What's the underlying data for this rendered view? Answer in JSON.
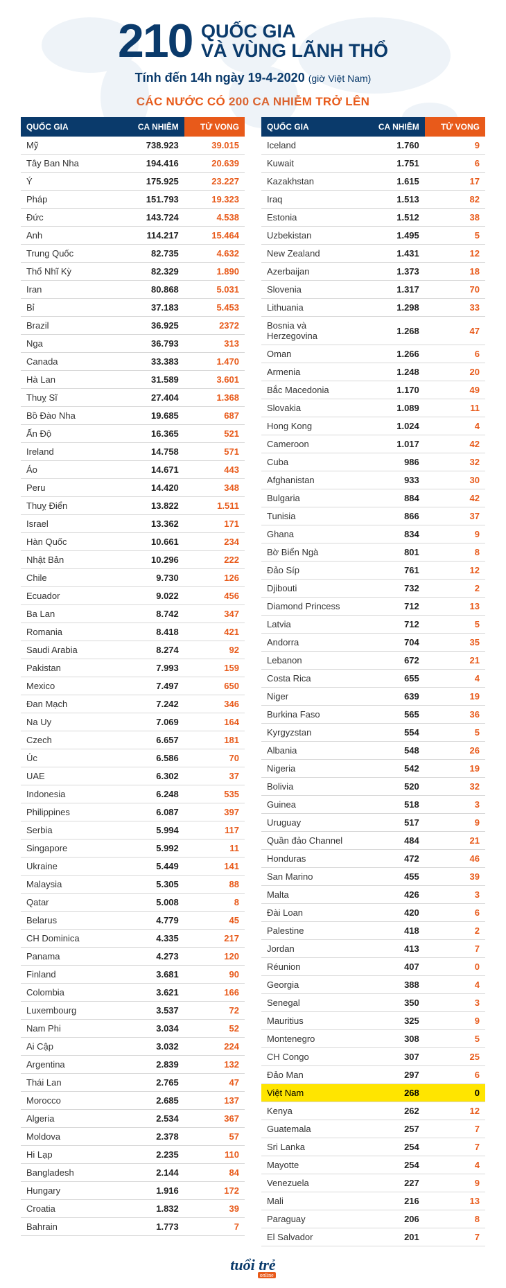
{
  "header": {
    "big_number": "210",
    "title_line1": "QUỐC GIA",
    "title_line2": "VÀ VÙNG LÃNH THỔ",
    "subtitle_main": "Tính đến 14h ngày 19-4-2020",
    "subtitle_note": "(giờ Việt Nam)"
  },
  "section_title": "CÁC NƯỚC CÓ 200 CA NHIỄM TRỞ LÊN",
  "columns": {
    "country": "QUỐC GIA",
    "cases": "CA NHIỄM",
    "deaths": "TỬ VONG"
  },
  "colors": {
    "navy": "#0a3a6b",
    "orange": "#e85a1a",
    "highlight": "#ffe500",
    "border": "#d8d8d8",
    "text": "#333333",
    "background": "#ffffff"
  },
  "logo": {
    "text": "tuổi trẻ",
    "tag": "online"
  },
  "left": [
    {
      "n": "Mỹ",
      "c": "738.923",
      "d": "39.015"
    },
    {
      "n": "Tây Ban Nha",
      "c": "194.416",
      "d": "20.639"
    },
    {
      "n": "Ý",
      "c": "175.925",
      "d": "23.227"
    },
    {
      "n": "Pháp",
      "c": "151.793",
      "d": "19.323"
    },
    {
      "n": "Đức",
      "c": "143.724",
      "d": "4.538"
    },
    {
      "n": "Anh",
      "c": "114.217",
      "d": "15.464"
    },
    {
      "n": "Trung Quốc",
      "c": "82.735",
      "d": "4.632"
    },
    {
      "n": "Thổ Nhĩ Kỳ",
      "c": "82.329",
      "d": "1.890"
    },
    {
      "n": "Iran",
      "c": "80.868",
      "d": "5.031"
    },
    {
      "n": "Bỉ",
      "c": "37.183",
      "d": "5.453"
    },
    {
      "n": "Brazil",
      "c": "36.925",
      "d": "2372"
    },
    {
      "n": "Nga",
      "c": "36.793",
      "d": "313"
    },
    {
      "n": "Canada",
      "c": "33.383",
      "d": "1.470"
    },
    {
      "n": "Hà Lan",
      "c": "31.589",
      "d": "3.601"
    },
    {
      "n": "Thuỵ Sĩ",
      "c": "27.404",
      "d": "1.368"
    },
    {
      "n": "Bồ Đào Nha",
      "c": "19.685",
      "d": "687"
    },
    {
      "n": "Ấn Độ",
      "c": "16.365",
      "d": "521"
    },
    {
      "n": "Ireland",
      "c": "14.758",
      "d": "571"
    },
    {
      "n": "Áo",
      "c": "14.671",
      "d": "443"
    },
    {
      "n": "Peru",
      "c": "14.420",
      "d": "348"
    },
    {
      "n": "Thuỵ Điển",
      "c": "13.822",
      "d": "1.511"
    },
    {
      "n": "Israel",
      "c": "13.362",
      "d": "171"
    },
    {
      "n": "Hàn Quốc",
      "c": "10.661",
      "d": "234"
    },
    {
      "n": "Nhật Bản",
      "c": "10.296",
      "d": "222"
    },
    {
      "n": "Chile",
      "c": "9.730",
      "d": "126"
    },
    {
      "n": "Ecuador",
      "c": "9.022",
      "d": "456"
    },
    {
      "n": "Ba Lan",
      "c": "8.742",
      "d": "347"
    },
    {
      "n": "Romania",
      "c": "8.418",
      "d": "421"
    },
    {
      "n": "Saudi Arabia",
      "c": "8.274",
      "d": "92"
    },
    {
      "n": "Pakistan",
      "c": "7.993",
      "d": "159"
    },
    {
      "n": "Mexico",
      "c": "7.497",
      "d": "650"
    },
    {
      "n": "Đan Mạch",
      "c": "7.242",
      "d": "346"
    },
    {
      "n": "Na Uy",
      "c": "7.069",
      "d": "164"
    },
    {
      "n": "Czech",
      "c": "6.657",
      "d": "181"
    },
    {
      "n": "Úc",
      "c": "6.586",
      "d": "70"
    },
    {
      "n": "UAE",
      "c": "6.302",
      "d": "37"
    },
    {
      "n": "Indonesia",
      "c": "6.248",
      "d": "535"
    },
    {
      "n": "Philippines",
      "c": "6.087",
      "d": "397"
    },
    {
      "n": "Serbia",
      "c": "5.994",
      "d": "117"
    },
    {
      "n": "Singapore",
      "c": "5.992",
      "d": "11"
    },
    {
      "n": "Ukraine",
      "c": "5.449",
      "d": "141"
    },
    {
      "n": "Malaysia",
      "c": "5.305",
      "d": "88"
    },
    {
      "n": "Qatar",
      "c": "5.008",
      "d": "8"
    },
    {
      "n": "Belarus",
      "c": "4.779",
      "d": "45"
    },
    {
      "n": "CH Dominica",
      "c": "4.335",
      "d": "217"
    },
    {
      "n": "Panama",
      "c": "4.273",
      "d": "120"
    },
    {
      "n": "Finland",
      "c": "3.681",
      "d": "90"
    },
    {
      "n": "Colombia",
      "c": "3.621",
      "d": "166"
    },
    {
      "n": "Luxembourg",
      "c": "3.537",
      "d": "72"
    },
    {
      "n": "Nam Phi",
      "c": "3.034",
      "d": "52"
    },
    {
      "n": "Ai Cập",
      "c": "3.032",
      "d": "224"
    },
    {
      "n": "Argentina",
      "c": "2.839",
      "d": "132"
    },
    {
      "n": "Thái Lan",
      "c": "2.765",
      "d": "47"
    },
    {
      "n": "Morocco",
      "c": "2.685",
      "d": "137"
    },
    {
      "n": "Algeria",
      "c": "2.534",
      "d": "367"
    },
    {
      "n": "Moldova",
      "c": "2.378",
      "d": "57"
    },
    {
      "n": "Hi Lạp",
      "c": "2.235",
      "d": "110"
    },
    {
      "n": "Bangladesh",
      "c": "2.144",
      "d": "84"
    },
    {
      "n": "Hungary",
      "c": "1.916",
      "d": "172"
    },
    {
      "n": "Croatia",
      "c": "1.832",
      "d": "39"
    },
    {
      "n": "Bahrain",
      "c": "1.773",
      "d": "7"
    }
  ],
  "right": [
    {
      "n": "Iceland",
      "c": "1.760",
      "d": "9"
    },
    {
      "n": "Kuwait",
      "c": "1.751",
      "d": "6"
    },
    {
      "n": "Kazakhstan",
      "c": "1.615",
      "d": "17"
    },
    {
      "n": "Iraq",
      "c": "1.513",
      "d": "82"
    },
    {
      "n": "Estonia",
      "c": "1.512",
      "d": "38"
    },
    {
      "n": "Uzbekistan",
      "c": "1.495",
      "d": "5"
    },
    {
      "n": "New Zealand",
      "c": "1.431",
      "d": "12"
    },
    {
      "n": "Azerbaijan",
      "c": "1.373",
      "d": "18"
    },
    {
      "n": "Slovenia",
      "c": "1.317",
      "d": "70"
    },
    {
      "n": "Lithuania",
      "c": "1.298",
      "d": "33"
    },
    {
      "n": "Bosnia và Herzegovina",
      "c": "1.268",
      "d": "47"
    },
    {
      "n": "Oman",
      "c": "1.266",
      "d": "6"
    },
    {
      "n": "Armenia",
      "c": "1.248",
      "d": "20"
    },
    {
      "n": "Bắc Macedonia",
      "c": "1.170",
      "d": "49"
    },
    {
      "n": "Slovakia",
      "c": "1.089",
      "d": "11"
    },
    {
      "n": "Hong Kong",
      "c": "1.024",
      "d": "4"
    },
    {
      "n": "Cameroon",
      "c": "1.017",
      "d": "42"
    },
    {
      "n": "Cuba",
      "c": "986",
      "d": "32"
    },
    {
      "n": "Afghanistan",
      "c": "933",
      "d": "30"
    },
    {
      "n": "Bulgaria",
      "c": "884",
      "d": "42"
    },
    {
      "n": "Tunisia",
      "c": "866",
      "d": "37"
    },
    {
      "n": "Ghana",
      "c": "834",
      "d": "9"
    },
    {
      "n": "Bờ Biển Ngà",
      "c": "801",
      "d": "8"
    },
    {
      "n": "Đảo Síp",
      "c": "761",
      "d": "12"
    },
    {
      "n": "Djibouti",
      "c": "732",
      "d": "2"
    },
    {
      "n": "Diamond Princess",
      "c": "712",
      "d": "13"
    },
    {
      "n": "Latvia",
      "c": "712",
      "d": "5"
    },
    {
      "n": "Andorra",
      "c": "704",
      "d": "35"
    },
    {
      "n": "Lebanon",
      "c": "672",
      "d": "21"
    },
    {
      "n": "Costa Rica",
      "c": "655",
      "d": "4"
    },
    {
      "n": "Niger",
      "c": "639",
      "d": "19"
    },
    {
      "n": "Burkina Faso",
      "c": "565",
      "d": "36"
    },
    {
      "n": "Kyrgyzstan",
      "c": "554",
      "d": "5"
    },
    {
      "n": "Albania",
      "c": "548",
      "d": "26"
    },
    {
      "n": "Nigeria",
      "c": "542",
      "d": "19"
    },
    {
      "n": "Bolivia",
      "c": "520",
      "d": "32"
    },
    {
      "n": "Guinea",
      "c": "518",
      "d": "3"
    },
    {
      "n": "Uruguay",
      "c": "517",
      "d": "9"
    },
    {
      "n": "Quần đảo Channel",
      "c": "484",
      "d": "21"
    },
    {
      "n": "Honduras",
      "c": "472",
      "d": "46"
    },
    {
      "n": "San Marino",
      "c": "455",
      "d": "39"
    },
    {
      "n": "Malta",
      "c": "426",
      "d": "3"
    },
    {
      "n": "Đài Loan",
      "c": "420",
      "d": "6"
    },
    {
      "n": "Palestine",
      "c": "418",
      "d": "2"
    },
    {
      "n": "Jordan",
      "c": "413",
      "d": "7"
    },
    {
      "n": "Réunion",
      "c": "407",
      "d": "0"
    },
    {
      "n": "Georgia",
      "c": "388",
      "d": "4"
    },
    {
      "n": "Senegal",
      "c": "350",
      "d": "3"
    },
    {
      "n": "Mauritius",
      "c": "325",
      "d": "9"
    },
    {
      "n": "Montenegro",
      "c": "308",
      "d": "5"
    },
    {
      "n": "CH Congo",
      "c": "307",
      "d": "25"
    },
    {
      "n": "Đảo Man",
      "c": "297",
      "d": "6"
    },
    {
      "n": "Việt Nam",
      "c": "268",
      "d": "0",
      "hl": true
    },
    {
      "n": "Kenya",
      "c": "262",
      "d": "12"
    },
    {
      "n": "Guatemala",
      "c": "257",
      "d": "7"
    },
    {
      "n": "Sri Lanka",
      "c": "254",
      "d": "7"
    },
    {
      "n": "Mayotte",
      "c": "254",
      "d": "4"
    },
    {
      "n": "Venezuela",
      "c": "227",
      "d": "9"
    },
    {
      "n": "Mali",
      "c": "216",
      "d": "13"
    },
    {
      "n": "Paraguay",
      "c": "206",
      "d": "8"
    },
    {
      "n": "El Salvador",
      "c": "201",
      "d": "7"
    }
  ]
}
